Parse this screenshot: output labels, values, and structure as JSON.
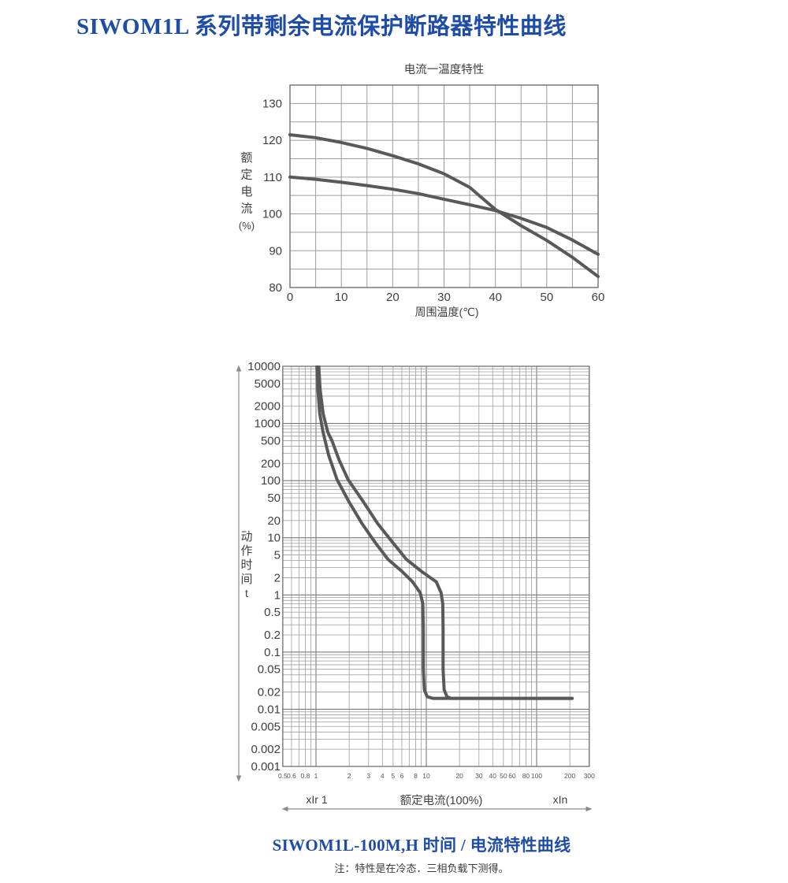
{
  "page": {
    "title": "SIWOM1L 系列带剩余电流保护断路器特性曲线",
    "footer_title": "SIWOM1L-100M,H 时间 / 电流特性曲线",
    "footer_note": "注：特性是在冷态．三相负载下测得。",
    "colors": {
      "accent": "#1e4da8",
      "curve": "#59595b",
      "grid_minor": "#9d9d9d",
      "grid_major": "#7a7a7a",
      "frame": "#6f6f6f",
      "label": "#404040",
      "tick_small": "#555555",
      "arrow": "#8a8a8a"
    }
  },
  "chart_data": [
    {
      "type": "line",
      "title": "电流一温度特性",
      "xlabel": "周围温度(℃)",
      "ylabel": "额定电流(%)",
      "ylabel_stack": [
        "额",
        "定",
        "电",
        "流",
        "(%)"
      ],
      "xlim": [
        0,
        60
      ],
      "ylim": [
        80,
        135
      ],
      "grid_step": {
        "x": 5,
        "y": 5
      },
      "xticks": [
        0,
        10,
        20,
        30,
        40,
        50,
        60
      ],
      "yticks": [
        130,
        120,
        110,
        100,
        90,
        80
      ],
      "grid": "on",
      "legend": "none",
      "series": [
        {
          "name": "derating-curve-steep",
          "x": [
            0,
            5,
            10,
            15,
            20,
            25,
            30,
            35,
            40,
            45,
            50,
            55,
            60
          ],
          "values": [
            121.5,
            120.7,
            119.4,
            117.8,
            115.8,
            113.6,
            110.9,
            107.2,
            101.2,
            96.8,
            92.8,
            88.2,
            83
          ]
        },
        {
          "name": "derating-curve-flat",
          "x": [
            0,
            5,
            10,
            15,
            20,
            25,
            30,
            35,
            40,
            45,
            50,
            55,
            60
          ],
          "values": [
            110,
            109.4,
            108.6,
            107.7,
            106.7,
            105.5,
            104,
            102.5,
            100.9,
            98.8,
            96.3,
            92.9,
            89
          ]
        }
      ]
    },
    {
      "type": "line",
      "scale": "log-log",
      "title": "",
      "xlabel": "额定电流(100%)",
      "xlabel_left": "xIr 1",
      "xlabel_right": "xIn",
      "ylabel": "动作时间 t",
      "ylabel_stack": [
        "动",
        "作",
        "时",
        "间",
        "t"
      ],
      "xlim": [
        0.5,
        300
      ],
      "ylim": [
        0.001,
        10000
      ],
      "xticks": [
        0.5,
        0.6,
        0.8,
        1,
        2,
        3,
        4,
        5,
        6,
        8,
        10,
        20,
        30,
        40,
        50,
        60,
        80,
        100,
        200,
        300
      ],
      "yticks": [
        10000,
        5000,
        2000,
        1000,
        500,
        200,
        100,
        50,
        20,
        10,
        5,
        2,
        1,
        0.5,
        0.2,
        0.1,
        0.05,
        0.02,
        0.01,
        0.005,
        0.002,
        0.001
      ],
      "grid": "on",
      "legend": "none",
      "series": [
        {
          "name": "trip-curve-fast",
          "points": [
            [
              1.02,
              10000
            ],
            [
              1.04,
              4000
            ],
            [
              1.08,
              1500
            ],
            [
              1.16,
              700
            ],
            [
              1.3,
              280
            ],
            [
              1.55,
              105
            ],
            [
              2.0,
              42
            ],
            [
              2.6,
              18
            ],
            [
              3.4,
              8.5
            ],
            [
              4.5,
              4.2
            ],
            [
              6.0,
              2.6
            ],
            [
              7.5,
              1.7
            ],
            [
              8.8,
              1.1
            ],
            [
              9.3,
              0.7
            ],
            [
              9.4,
              0.25
            ],
            [
              9.4,
              0.05
            ],
            [
              9.6,
              0.022
            ],
            [
              10.2,
              0.0165
            ],
            [
              11.5,
              0.0155
            ],
            [
              210,
              0.0155
            ]
          ]
        },
        {
          "name": "trip-curve-slow",
          "points": [
            [
              1.06,
              10000
            ],
            [
              1.09,
              4000
            ],
            [
              1.16,
              1500
            ],
            [
              1.28,
              700
            ],
            [
              1.4,
              490
            ],
            [
              1.62,
              230
            ],
            [
              1.95,
              105
            ],
            [
              2.7,
              42
            ],
            [
              3.6,
              18
            ],
            [
              4.9,
              8.5
            ],
            [
              6.6,
              4.2
            ],
            [
              9.0,
              2.6
            ],
            [
              12.3,
              1.7
            ],
            [
              13.6,
              1.1
            ],
            [
              14.1,
              0.7
            ],
            [
              14.2,
              0.25
            ],
            [
              14.2,
              0.05
            ],
            [
              14.5,
              0.022
            ],
            [
              15.4,
              0.0165
            ],
            [
              16.8,
              0.0155
            ],
            [
              210,
              0.0155
            ]
          ]
        }
      ]
    }
  ]
}
